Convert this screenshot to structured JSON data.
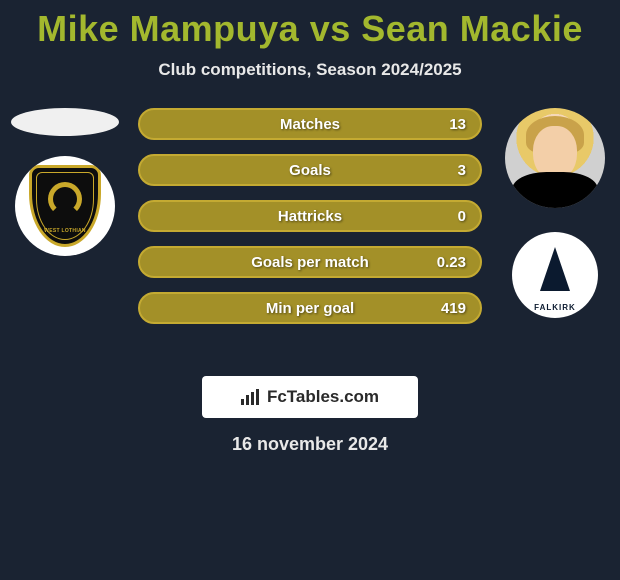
{
  "title": "Mike Mampuya vs Sean Mackie",
  "subtitle": "Club competitions, Season 2024/2025",
  "date": "16 november 2024",
  "brand": "FcTables.com",
  "colors": {
    "background": "#1a2332",
    "accent": "#a3b82e",
    "bar_fill": "#a39028",
    "bar_border": "#c4aa32",
    "text_light": "#e8e8e8",
    "shield_bg": "#0d0d0d",
    "shield_gold": "#c9a82a",
    "crest2_navy": "#0b1a2f"
  },
  "left_crest_text": "WEST LOTHIAN",
  "right_crest_text": "FALKIRK",
  "stats": [
    {
      "label": "Matches",
      "value": "13"
    },
    {
      "label": "Goals",
      "value": "3"
    },
    {
      "label": "Hattricks",
      "value": "0"
    },
    {
      "label": "Goals per match",
      "value": "0.23"
    },
    {
      "label": "Min per goal",
      "value": "419"
    }
  ]
}
